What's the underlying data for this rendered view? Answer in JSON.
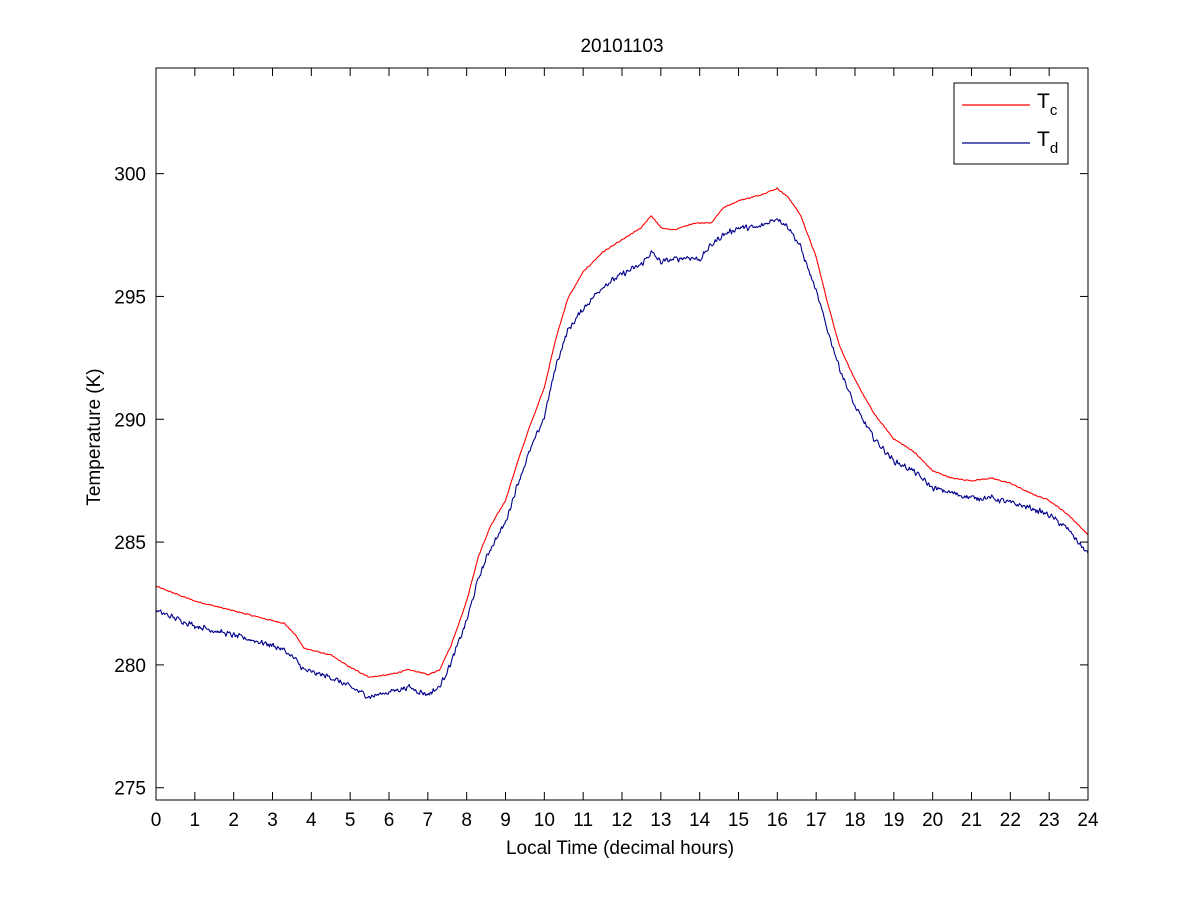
{
  "chart_data": {
    "type": "line",
    "title": "20101103",
    "xlabel": "Local Time (decimal hours)",
    "ylabel": "Temperature (K)",
    "xlim": [
      0,
      24
    ],
    "ylim": [
      274.5,
      304.3
    ],
    "xticks": [
      "0",
      "1",
      "2",
      "3",
      "4",
      "5",
      "6",
      "7",
      "8",
      "9",
      "10",
      "11",
      "12",
      "13",
      "14",
      "15",
      "16",
      "17",
      "18",
      "19",
      "20",
      "21",
      "22",
      "23",
      "24"
    ],
    "yticks": [
      "275",
      "280",
      "285",
      "290",
      "295",
      "300"
    ],
    "grid": false,
    "legend_position": "top-right",
    "series": [
      {
        "name": "T",
        "subscript": "c",
        "color": "#ff0000",
        "noise": 0.03,
        "x": [
          0,
          0.5,
          1,
          1.5,
          2,
          2.5,
          3,
          3.3,
          3.6,
          3.8,
          4,
          4.5,
          5,
          5.5,
          6,
          6.5,
          6.8,
          7,
          7.3,
          7.6,
          8,
          8.3,
          8.6,
          9,
          9.3,
          9.6,
          10,
          10.3,
          10.6,
          11,
          11.5,
          12,
          12.5,
          12.75,
          13,
          13.3,
          13.7,
          14,
          14.3,
          14.6,
          15,
          15.5,
          16,
          16.3,
          16.6,
          17,
          17.3,
          17.6,
          18,
          18.5,
          19,
          19.5,
          20,
          20.5,
          21,
          21.5,
          22,
          22.5,
          23,
          23.5,
          24
        ],
        "y": [
          283.2,
          282.9,
          282.6,
          282.4,
          282.2,
          282.0,
          281.8,
          281.7,
          281.2,
          280.7,
          280.6,
          280.4,
          279.9,
          279.5,
          279.6,
          279.8,
          279.7,
          279.6,
          279.8,
          280.8,
          282.6,
          284.4,
          285.6,
          286.7,
          288.2,
          289.6,
          291.3,
          293.3,
          294.9,
          296.0,
          296.8,
          297.3,
          297.8,
          298.3,
          297.8,
          297.7,
          297.9,
          298.0,
          298.0,
          298.6,
          298.9,
          299.1,
          299.4,
          299.0,
          298.3,
          296.6,
          294.7,
          293.0,
          291.6,
          290.2,
          289.2,
          288.7,
          287.9,
          287.6,
          287.5,
          287.6,
          287.4,
          287.0,
          286.7,
          286.1,
          285.3
        ]
      },
      {
        "name": "T",
        "subscript": "d",
        "color": "#00008b",
        "noise": 0.14,
        "x": [
          0,
          0.5,
          1,
          1.5,
          2,
          2.5,
          3,
          3.3,
          3.6,
          3.8,
          4,
          4.5,
          5,
          5.5,
          6,
          6.5,
          6.8,
          7,
          7.3,
          7.6,
          8,
          8.3,
          8.6,
          9,
          9.3,
          9.6,
          10,
          10.3,
          10.6,
          11,
          11.5,
          12,
          12.5,
          12.75,
          13,
          13.3,
          13.7,
          14,
          14.3,
          14.6,
          15,
          15.5,
          16,
          16.3,
          16.6,
          17,
          17.3,
          17.6,
          18,
          18.5,
          19,
          19.5,
          20,
          20.5,
          21,
          21.5,
          22,
          22.5,
          23,
          23.5,
          24
        ],
        "y": [
          282.2,
          281.9,
          281.6,
          281.4,
          281.2,
          281.0,
          280.8,
          280.6,
          280.2,
          279.8,
          279.7,
          279.5,
          279.1,
          278.7,
          278.9,
          279.1,
          278.9,
          278.8,
          279.1,
          280.1,
          281.8,
          283.5,
          284.7,
          285.8,
          287.3,
          288.6,
          290.1,
          292.2,
          293.6,
          294.5,
          295.4,
          295.9,
          296.3,
          296.8,
          296.4,
          296.5,
          296.6,
          296.5,
          297.1,
          297.5,
          297.8,
          297.8,
          298.2,
          297.8,
          297.0,
          295.2,
          293.6,
          292.1,
          290.5,
          289.2,
          288.3,
          287.9,
          287.2,
          287.0,
          286.8,
          286.8,
          286.6,
          286.4,
          286.1,
          285.5,
          284.5
        ]
      }
    ]
  }
}
